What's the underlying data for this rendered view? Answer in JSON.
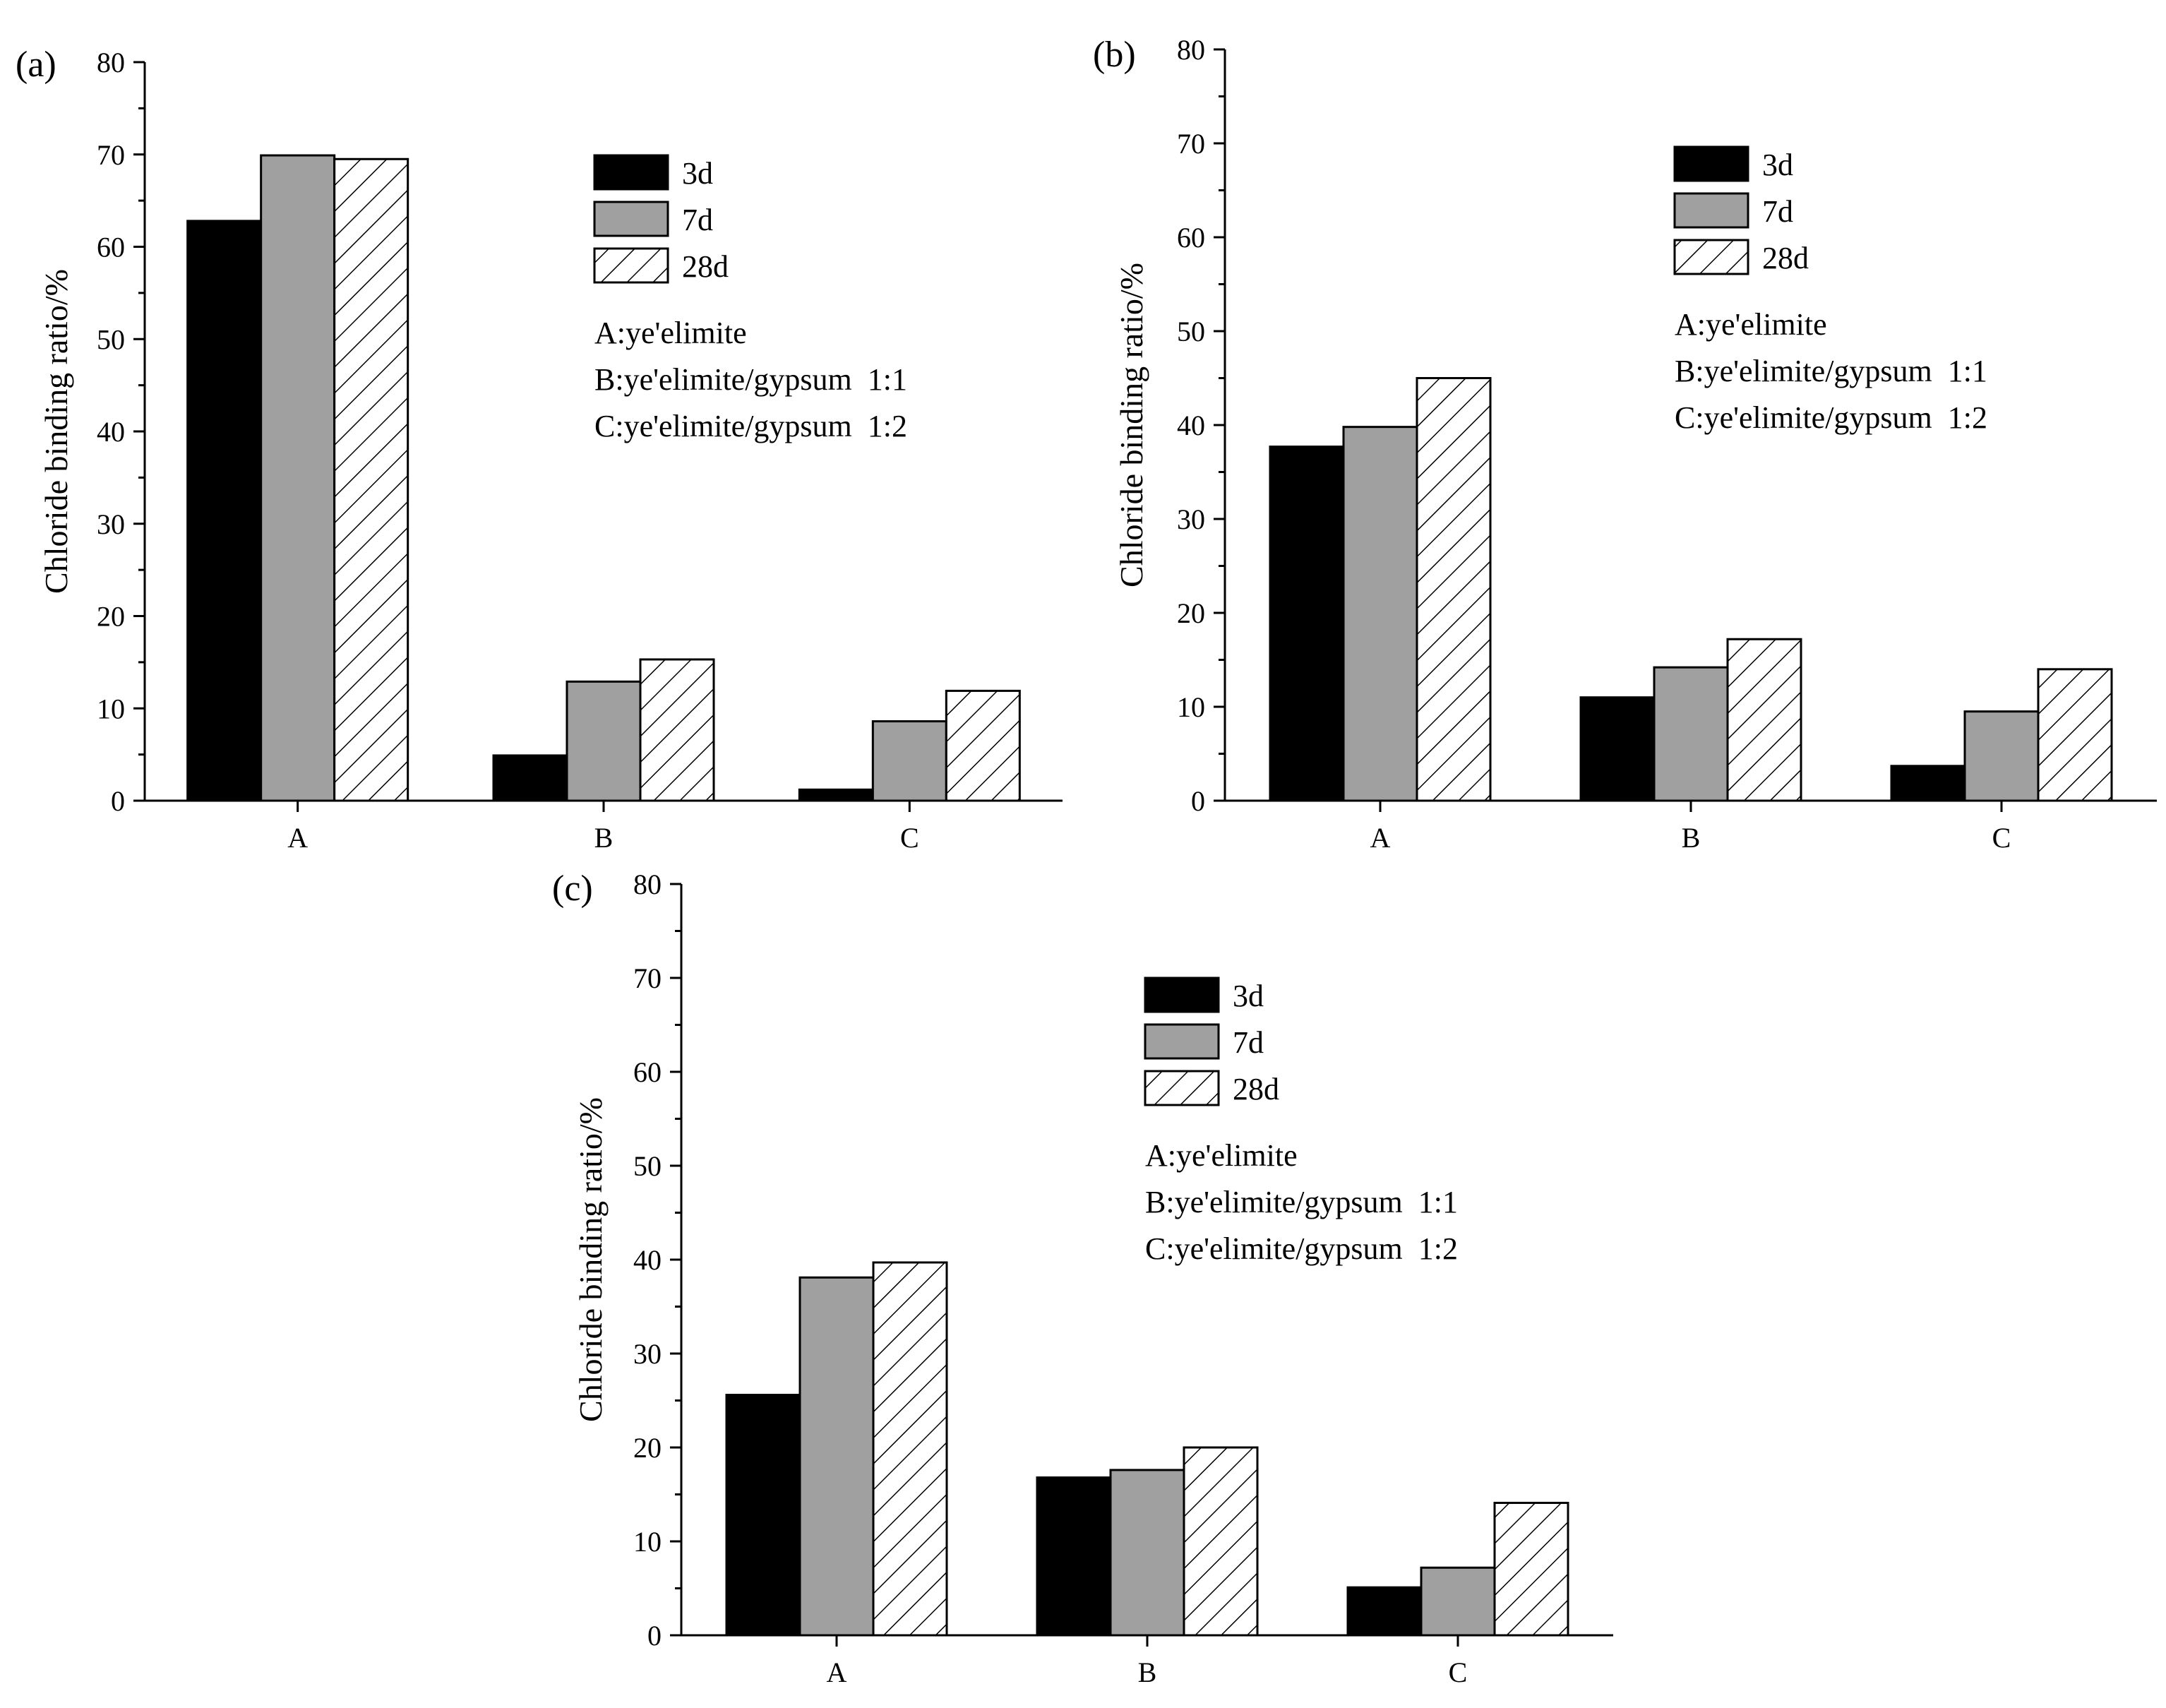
{
  "chart_data": [
    {
      "panel": "(a)",
      "type": "bar",
      "ylabel": "Chloride binding ratio/%",
      "xlabel": "",
      "ylim": [
        0,
        80
      ],
      "yticks": [
        "0",
        "10",
        "20",
        "30",
        "40",
        "50",
        "60",
        "70",
        "80"
      ],
      "categories": [
        "A",
        "B",
        "C"
      ],
      "series": [
        {
          "name": "3d",
          "style": "black",
          "values": [
            62.8,
            4.9,
            1.2
          ]
        },
        {
          "name": "7d",
          "style": "gray",
          "values": [
            69.9,
            12.9,
            8.6
          ]
        },
        {
          "name": "28d",
          "style": "hatch",
          "values": [
            69.5,
            15.3,
            11.9
          ]
        }
      ],
      "notes": [
        "A:ye'elimite",
        "B:ye'elimite/gypsum  1:1",
        "C:ye'elimite/gypsum  1:2"
      ],
      "legend_position": "top-right"
    },
    {
      "panel": "(b)",
      "type": "bar",
      "ylabel": "Chloride binding ratio/%",
      "xlabel": "",
      "ylim": [
        0,
        80
      ],
      "yticks": [
        "0",
        "10",
        "20",
        "30",
        "40",
        "50",
        "60",
        "70",
        "80"
      ],
      "categories": [
        "A",
        "B",
        "C"
      ],
      "series": [
        {
          "name": "3d",
          "style": "black",
          "values": [
            37.7,
            11.0,
            3.7
          ]
        },
        {
          "name": "7d",
          "style": "gray",
          "values": [
            39.8,
            14.2,
            9.5
          ]
        },
        {
          "name": "28d",
          "style": "hatch",
          "values": [
            45.0,
            17.2,
            14.0
          ]
        }
      ],
      "notes": [
        "A:ye'elimite",
        "B:ye'elimite/gypsum  1:1",
        "C:ye'elimite/gypsum  1:2"
      ],
      "legend_position": "top-right"
    },
    {
      "panel": "(c)",
      "type": "bar",
      "ylabel": "Chloride binding ratio/%",
      "xlabel": "",
      "ylim": [
        0,
        80
      ],
      "yticks": [
        "0",
        "10",
        "20",
        "30",
        "40",
        "50",
        "60",
        "70",
        "80"
      ],
      "categories": [
        "A",
        "B",
        "C"
      ],
      "series": [
        {
          "name": "3d",
          "style": "black",
          "values": [
            25.6,
            16.8,
            5.1
          ]
        },
        {
          "name": "7d",
          "style": "gray",
          "values": [
            38.1,
            17.6,
            7.2
          ]
        },
        {
          "name": "28d",
          "style": "hatch",
          "values": [
            39.7,
            20.0,
            14.1
          ]
        }
      ],
      "notes": [
        "A:ye'elimite",
        "B:ye'elimite/gypsum  1:1",
        "C:ye'elimite/gypsum  1:2"
      ],
      "legend_position": "top-right"
    }
  ],
  "colors": {
    "black": "#000000",
    "gray": "#a0a0a0",
    "hatch_bg": "#ffffff"
  }
}
